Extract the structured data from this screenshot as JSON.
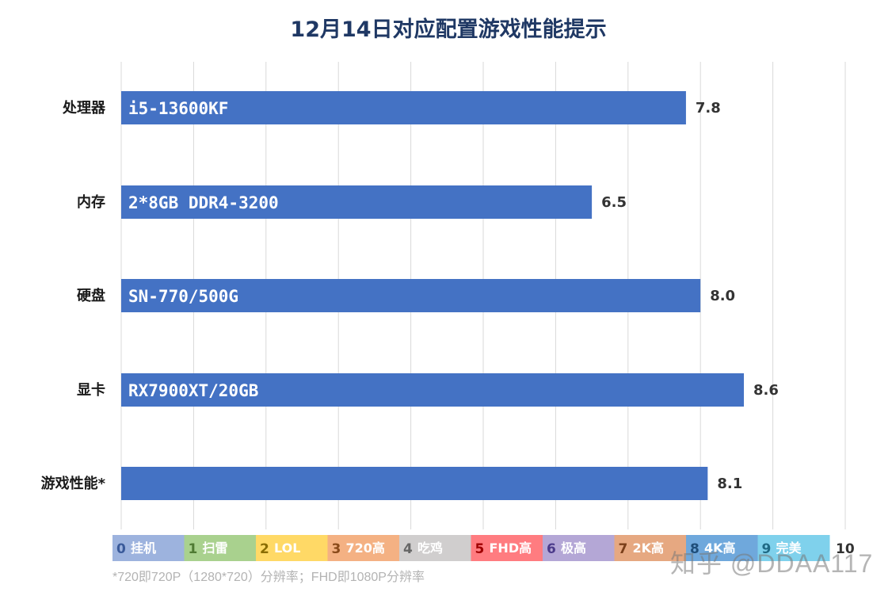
{
  "chart_data": {
    "type": "bar",
    "orientation": "horizontal",
    "title": "12月14日对应配置游戏性能提示",
    "categories": [
      "处理器",
      "内存",
      "硬盘",
      "显卡",
      "游戏性能*"
    ],
    "bar_texts": [
      "i5-13600KF",
      "2*8GB DDR4-3200",
      "SN-770/500G",
      "RX7900XT/20GB",
      ""
    ],
    "values": [
      7.8,
      6.5,
      8.0,
      8.6,
      8.1
    ],
    "value_labels": [
      "7.8",
      "6.5",
      "8.0",
      "8.6",
      "8.1"
    ],
    "xlim": [
      0,
      10
    ],
    "grid": true,
    "bar_color": "#4472c4",
    "legend_scale": [
      {
        "num": "0",
        "label": "挂机",
        "color": "#9db3de",
        "num_color": "#3a5a9a"
      },
      {
        "num": "1",
        "label": "扫雷",
        "color": "#a9d18e",
        "num_color": "#4f7a33"
      },
      {
        "num": "2",
        "label": "LOL",
        "color": "#ffd966",
        "num_color": "#8a6d00"
      },
      {
        "num": "3",
        "label": "720高",
        "color": "#f4b183",
        "num_color": "#8a4a1a"
      },
      {
        "num": "4",
        "label": "吃鸡",
        "color": "#d0cece",
        "num_color": "#666666"
      },
      {
        "num": "5",
        "label": "FHD高",
        "color": "#ff7c80",
        "num_color": "#a00000"
      },
      {
        "num": "6",
        "label": "极高",
        "color": "#b4a7d6",
        "num_color": "#4b3a8a"
      },
      {
        "num": "7",
        "label": "2K高",
        "color": "#e6a881",
        "num_color": "#7a3f1a"
      },
      {
        "num": "8",
        "label": "4K高",
        "color": "#6fa8dc",
        "num_color": "#1f4e7a"
      },
      {
        "num": "9",
        "label": "完美",
        "color": "#7fd1ec",
        "num_color": "#1f6a85"
      }
    ],
    "legend_end": "10"
  },
  "footnote": "*720即720P（1280*720）分辨率；FHD即1080P分辨率",
  "watermark": "知乎 @DDAA117"
}
